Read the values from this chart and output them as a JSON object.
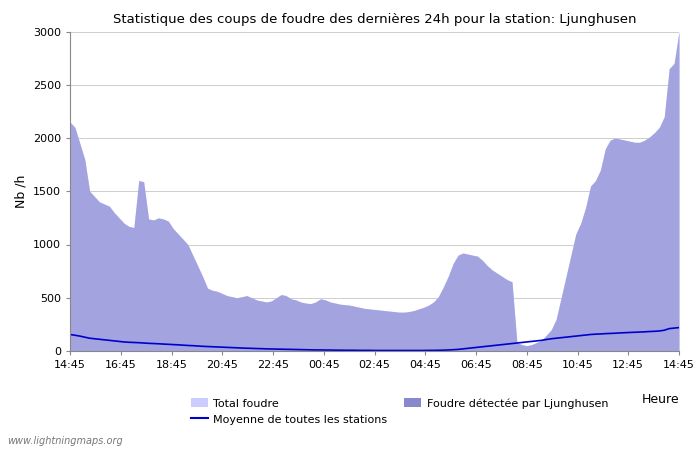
{
  "title": "Statistique des coups de foudre des dernières 24h pour la station: Ljunghusen",
  "xlabel": "Heure",
  "ylabel": "Nb /h",
  "ylim": [
    0,
    3000
  ],
  "yticks": [
    0,
    500,
    1000,
    1500,
    2000,
    2500,
    3000
  ],
  "xtick_labels": [
    "14:45",
    "16:45",
    "18:45",
    "20:45",
    "22:45",
    "00:45",
    "02:45",
    "04:45",
    "06:45",
    "08:45",
    "10:45",
    "12:45",
    "14:45"
  ],
  "watermark": "www.lightningmaps.org",
  "total_foudre_color": "#ccccff",
  "ljunghusen_color": "#8888cc",
  "moyenne_color": "#0000cc",
  "background_color": "#ffffff",
  "total_foudre_values": [
    2150,
    2100,
    1950,
    1800,
    1500,
    1450,
    1400,
    1380,
    1360,
    1300,
    1250,
    1200,
    1170,
    1160,
    1600,
    1590,
    1240,
    1230,
    1250,
    1240,
    1220,
    1150,
    1100,
    1050,
    1000,
    900,
    800,
    700,
    590,
    570,
    560,
    540,
    520,
    510,
    500,
    510,
    520,
    500,
    480,
    470,
    460,
    470,
    500,
    530,
    520,
    490,
    480,
    460,
    450,
    445,
    460,
    490,
    480,
    460,
    450,
    440,
    435,
    430,
    420,
    410,
    400,
    395,
    390,
    385,
    380,
    375,
    370,
    365,
    365,
    370,
    380,
    395,
    410,
    430,
    460,
    510,
    600,
    700,
    820,
    900,
    920,
    910,
    900,
    890,
    850,
    800,
    760,
    730,
    700,
    670,
    650,
    80,
    60,
    50,
    60,
    80,
    100,
    150,
    200,
    300,
    500,
    700,
    900,
    1100,
    1200,
    1350,
    1550,
    1600,
    1700,
    1900,
    1980,
    2000,
    1990,
    1980,
    1970,
    1960,
    1960,
    1980,
    2010,
    2050,
    2100,
    2200,
    2650,
    2700,
    3000
  ],
  "ljunghusen_values": [
    2150,
    2100,
    1950,
    1800,
    1500,
    1450,
    1400,
    1380,
    1360,
    1300,
    1250,
    1200,
    1170,
    1160,
    1600,
    1590,
    1240,
    1230,
    1250,
    1240,
    1220,
    1150,
    1100,
    1050,
    1000,
    900,
    800,
    700,
    590,
    570,
    560,
    540,
    520,
    510,
    500,
    510,
    520,
    500,
    480,
    470,
    460,
    470,
    500,
    530,
    520,
    490,
    480,
    460,
    450,
    445,
    460,
    490,
    480,
    460,
    450,
    440,
    435,
    430,
    420,
    410,
    400,
    395,
    390,
    385,
    380,
    375,
    370,
    365,
    365,
    370,
    380,
    395,
    410,
    430,
    460,
    510,
    600,
    700,
    820,
    900,
    920,
    910,
    900,
    890,
    850,
    800,
    760,
    730,
    700,
    670,
    650,
    80,
    60,
    50,
    60,
    80,
    100,
    150,
    200,
    300,
    500,
    700,
    900,
    1100,
    1200,
    1350,
    1550,
    1600,
    1700,
    1900,
    1980,
    2000,
    1990,
    1980,
    1970,
    1960,
    1960,
    1980,
    2010,
    2050,
    2100,
    2200,
    2650,
    2700,
    3000
  ],
  "moyenne_values": [
    155,
    148,
    140,
    130,
    120,
    115,
    110,
    105,
    100,
    95,
    90,
    85,
    82,
    80,
    78,
    75,
    72,
    70,
    68,
    65,
    63,
    60,
    58,
    55,
    52,
    50,
    47,
    44,
    42,
    40,
    38,
    36,
    34,
    32,
    30,
    28,
    26,
    25,
    23,
    22,
    20,
    19,
    18,
    17,
    16,
    15,
    14,
    13,
    12,
    11,
    10,
    10,
    9,
    9,
    8,
    8,
    7,
    7,
    7,
    6,
    6,
    6,
    5,
    5,
    5,
    5,
    5,
    5,
    5,
    5,
    5,
    5,
    5,
    6,
    6,
    7,
    8,
    10,
    12,
    15,
    20,
    25,
    30,
    35,
    40,
    45,
    50,
    55,
    60,
    65,
    70,
    75,
    80,
    85,
    90,
    95,
    100,
    108,
    115,
    120,
    125,
    130,
    135,
    140,
    145,
    150,
    155,
    158,
    160,
    163,
    165,
    167,
    170,
    172,
    174,
    176,
    178,
    180,
    183,
    185,
    188,
    195,
    210,
    215,
    220
  ]
}
